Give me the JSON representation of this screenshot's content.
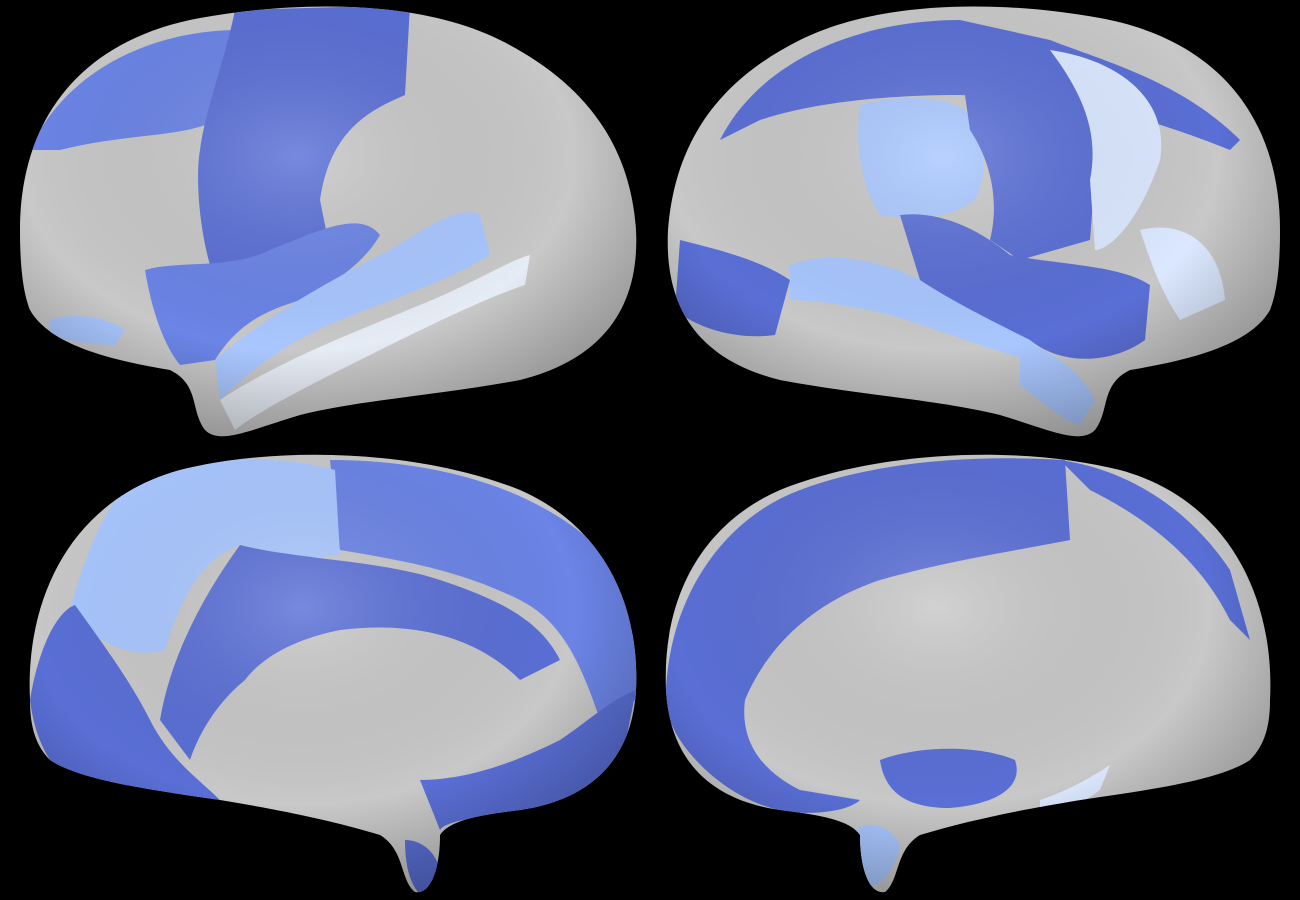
{
  "figure": {
    "background": "#000000",
    "views": [
      {
        "name": "left-lateral",
        "hemisphere": "left",
        "view": "lateral"
      },
      {
        "name": "right-lateral",
        "hemisphere": "right",
        "view": "lateral"
      },
      {
        "name": "left-medial",
        "hemisphere": "left",
        "view": "medial"
      },
      {
        "name": "right-medial",
        "hemisphere": "right",
        "view": "medial"
      }
    ]
  },
  "palette": {
    "cortex_gray": "#c8c8c8",
    "dark_blue": "#5a6fd6",
    "mid_blue": "#6b84e6",
    "light_blue": "#a9c7ff",
    "pale_blue": "#dbe8ff"
  }
}
